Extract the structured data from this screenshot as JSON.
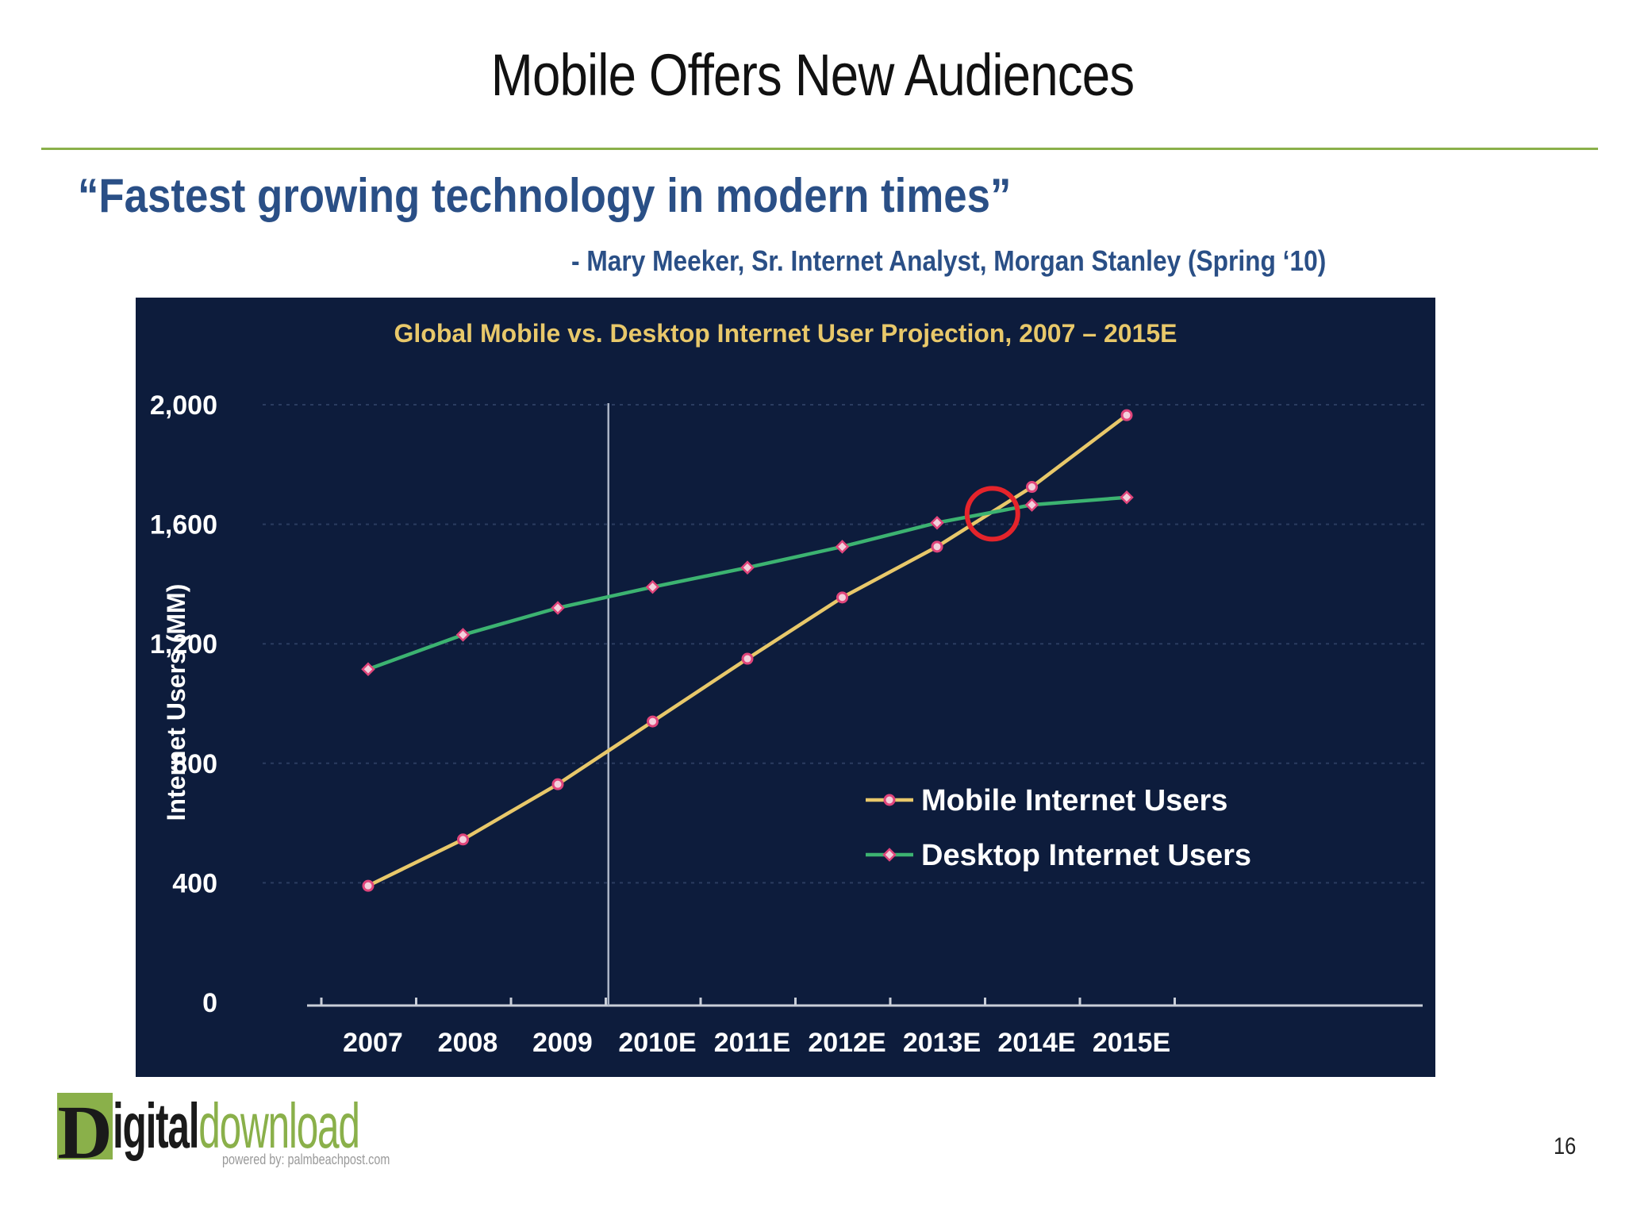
{
  "slide": {
    "title": "Mobile Offers New Audiences",
    "quote": "“Fastest growing technology in modern times”",
    "attribution": "- Mary Meeker, Sr. Internet Analyst, Morgan Stanley (Spring ‘10)",
    "page_number": "16"
  },
  "logo": {
    "letter": "D",
    "part1": "igital",
    "part2": "download",
    "tagline": "powered by: palmbeachpost.com"
  },
  "colors": {
    "rule": "#8ab04a",
    "quote_text": "#2a4f86",
    "chart_background": "#0d1c3c",
    "mobile_line": "#e8c86a",
    "desktop_line": "#3cb371",
    "marker": "#e0457b",
    "highlight_circle": "#e5242b"
  },
  "chart_data": {
    "type": "line",
    "title": "Global Mobile vs. Desktop Internet User Projection, 2007 – 2015E",
    "xlabel": "",
    "ylabel": "Internet Users (MM)",
    "categories": [
      "2007",
      "2008",
      "2009",
      "2010E",
      "2011E",
      "2012E",
      "2013E",
      "2014E",
      "2015E"
    ],
    "ylim": [
      0,
      2000
    ],
    "yticks": [
      "0",
      "400",
      "800",
      "1,200",
      "1,600",
      "2,000"
    ],
    "ytick_values": [
      0,
      400,
      800,
      1200,
      1600,
      2000
    ],
    "grid": true,
    "legend_position": "lower-right",
    "series": [
      {
        "name": "Mobile Internet Users",
        "values": [
          390,
          545,
          730,
          940,
          1150,
          1355,
          1525,
          1725,
          1965
        ]
      },
      {
        "name": "Desktop Internet Users",
        "values": [
          1115,
          1230,
          1320,
          1390,
          1455,
          1525,
          1605,
          1665,
          1690
        ]
      }
    ],
    "annotations": {
      "divider_between": [
        "2009",
        "2010E"
      ],
      "crossover_highlight": {
        "x_between": [
          "2013E",
          "2014E"
        ],
        "y": 1635
      }
    }
  }
}
